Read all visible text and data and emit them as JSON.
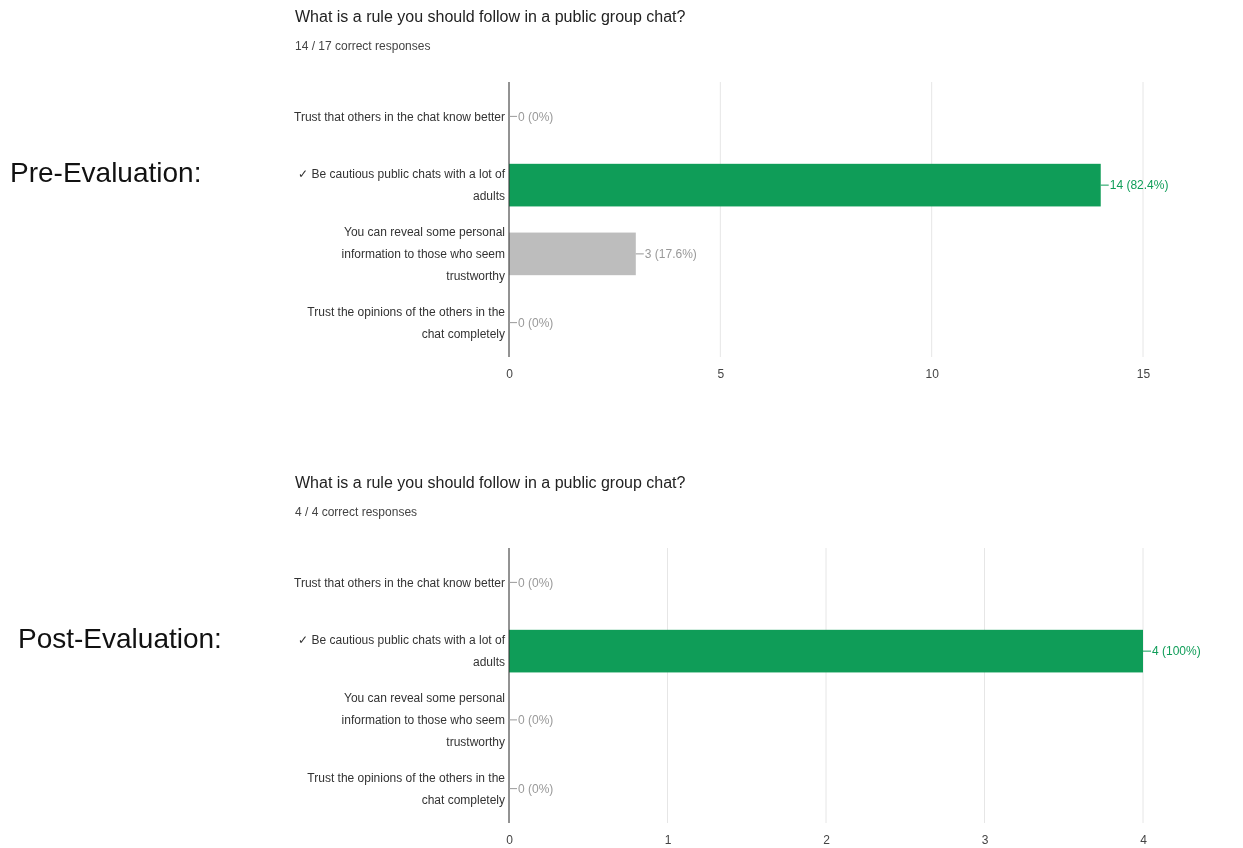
{
  "chart_data": [
    {
      "type": "bar",
      "orientation": "horizontal",
      "title": "What is a rule you should follow in a public group chat?",
      "subtitle": "14 / 17 correct responses",
      "annotations": [
        "Pre-Evaluation:"
      ],
      "categories": [
        "Trust that others in the chat know better",
        "✓ Be cautious public chats with a lot of adults",
        "You can reveal some personal information to those who seem trustworthy",
        "Trust the opinions of the others in the chat completely"
      ],
      "values": [
        0,
        14,
        3,
        0
      ],
      "colors": [
        "#bdbdbd",
        "#0f9d58",
        "#bdbdbd",
        "#bdbdbd"
      ],
      "value_labels": [
        "0 (0%)",
        "14 (82.4%)",
        "3 (17.6%)",
        "0 (0%)"
      ],
      "xlim": [
        0,
        15
      ],
      "xticks": [
        0,
        5,
        10,
        15
      ],
      "grid": "x"
    },
    {
      "type": "bar",
      "orientation": "horizontal",
      "title": "What is a rule you should follow in a public group chat?",
      "subtitle": "4 / 4 correct responses",
      "annotations": [
        "Post-Evaluation:"
      ],
      "categories": [
        "Trust that others in the chat know better",
        "✓ Be cautious public chats with a lot of adults",
        "You can reveal some personal information to those who seem trustworthy",
        "Trust the opinions of the others in the chat completely"
      ],
      "values": [
        0,
        4,
        0,
        0
      ],
      "colors": [
        "#bdbdbd",
        "#0f9d58",
        "#bdbdbd",
        "#bdbdbd"
      ],
      "value_labels": [
        "0 (0%)",
        "4 (100%)",
        "0 (0%)",
        "0 (0%)"
      ],
      "xlim": [
        0,
        4
      ],
      "xticks": [
        0,
        1,
        2,
        3,
        4
      ],
      "grid": "x"
    }
  ]
}
